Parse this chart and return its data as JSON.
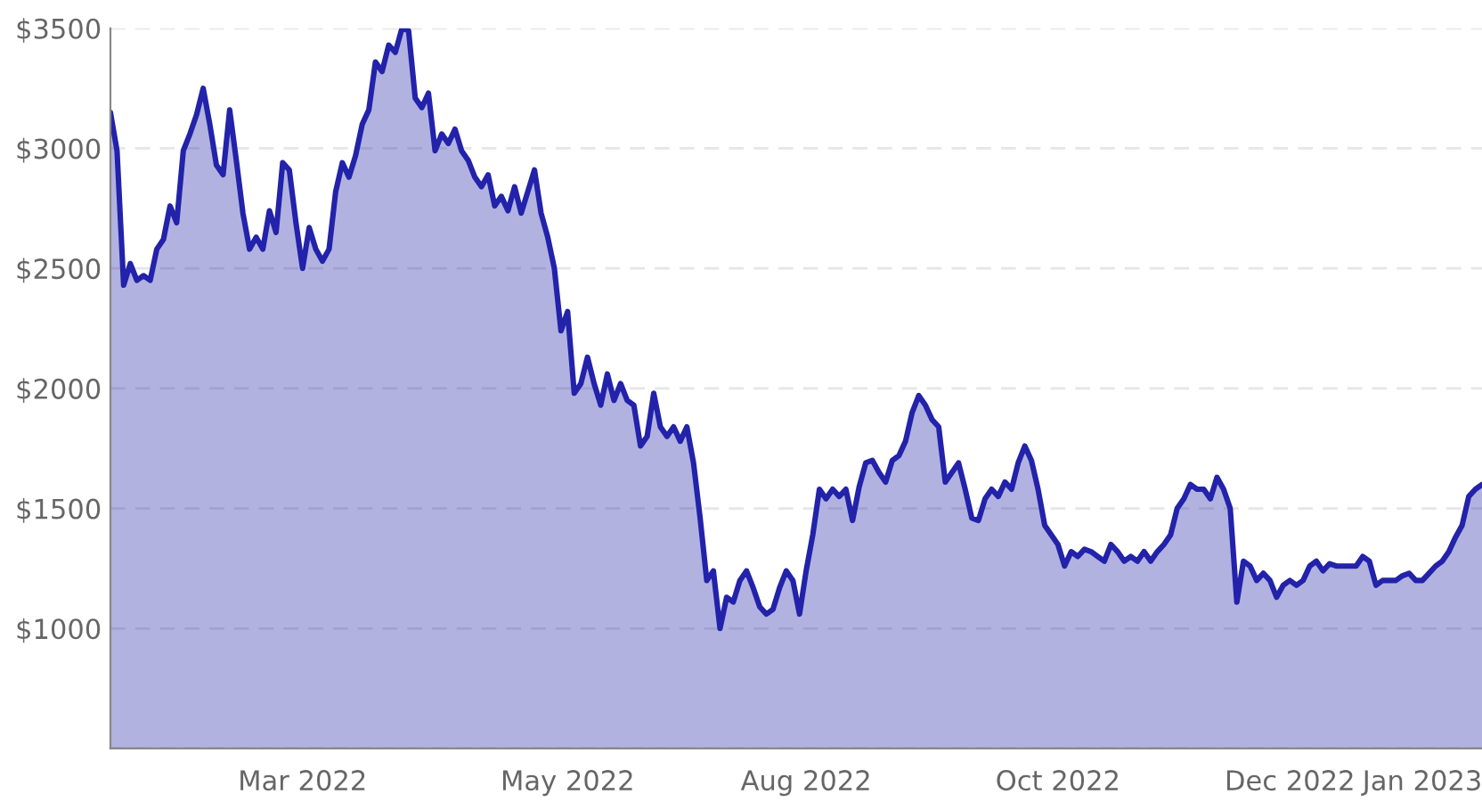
{
  "chart_data": {
    "type": "area",
    "categories": [
      null,
      null,
      null,
      null,
      null,
      null,
      null,
      null,
      null,
      null,
      null,
      null,
      null,
      null,
      null,
      null,
      null,
      null,
      null,
      null,
      null,
      null,
      null,
      null,
      null,
      null,
      null,
      null,
      null,
      "Mar 2022",
      null,
      null,
      null,
      null,
      null,
      null,
      null,
      null,
      null,
      null,
      null,
      null,
      null,
      null,
      null,
      null,
      null,
      null,
      null,
      null,
      null,
      null,
      null,
      null,
      null,
      null,
      null,
      null,
      null,
      null,
      null,
      null,
      null,
      null,
      null,
      null,
      null,
      null,
      null,
      "May 2022",
      null,
      null,
      null,
      null,
      null,
      null,
      null,
      null,
      null,
      null,
      null,
      null,
      null,
      null,
      null,
      null,
      null,
      null,
      null,
      null,
      null,
      null,
      null,
      null,
      null,
      null,
      null,
      null,
      null,
      null,
      null,
      null,
      null,
      null,
      null,
      "Aug 2022",
      null,
      null,
      null,
      null,
      null,
      null,
      null,
      null,
      null,
      null,
      null,
      null,
      null,
      null,
      null,
      null,
      null,
      null,
      null,
      null,
      null,
      null,
      null,
      null,
      null,
      null,
      null,
      null,
      null,
      null,
      null,
      null,
      null,
      null,
      null,
      null,
      null,
      "Oct 2022",
      null,
      null,
      null,
      null,
      null,
      null,
      null,
      null,
      null,
      null,
      null,
      null,
      null,
      null,
      null,
      null,
      null,
      null,
      null,
      null,
      null,
      null,
      null,
      null,
      null,
      null,
      null,
      null,
      null,
      null,
      null,
      null,
      null,
      null,
      "Dec 2022",
      null,
      null,
      null,
      null,
      null,
      null,
      null,
      null,
      null,
      null,
      null,
      null,
      null,
      null,
      null,
      null,
      null,
      null,
      null,
      "Jan 2023",
      null,
      null,
      null,
      null,
      null,
      null,
      null,
      null,
      null
    ],
    "ylim": [
      500,
      3500
    ],
    "yticks": [
      {
        "value": 500,
        "label": null
      },
      {
        "value": 1000,
        "label": "$1000"
      },
      {
        "value": 1500,
        "label": "$1500"
      },
      {
        "value": 2000,
        "label": "$2000"
      },
      {
        "value": 2500,
        "label": "$2500"
      },
      {
        "value": 3000,
        "label": "$3000"
      },
      {
        "value": 3500,
        "label": "$3500"
      }
    ],
    "grid": "y",
    "series": [
      {
        "color": "#2222aa",
        "values": [
          3150,
          2990,
          2430,
          2520,
          2450,
          2470,
          2450,
          2580,
          2620,
          2760,
          2690,
          2990,
          3060,
          3140,
          3250,
          3100,
          2930,
          2890,
          3160,
          2950,
          2730,
          2580,
          2630,
          2580,
          2740,
          2650,
          2940,
          2910,
          2690,
          2500,
          2670,
          2580,
          2530,
          2580,
          2820,
          2940,
          2880,
          2970,
          3100,
          3160,
          3360,
          3320,
          3430,
          3400,
          3500,
          3490,
          3210,
          3170,
          3230,
          2990,
          3060,
          3020,
          3080,
          2990,
          2950,
          2880,
          2840,
          2890,
          2760,
          2800,
          2740,
          2840,
          2730,
          2820,
          2910,
          2730,
          2630,
          2500,
          2240,
          2320,
          1980,
          2020,
          2130,
          2020,
          1930,
          2060,
          1950,
          2020,
          1950,
          1930,
          1760,
          1800,
          1980,
          1840,
          1800,
          1840,
          1780,
          1840,
          1690,
          1460,
          1200,
          1240,
          1000,
          1130,
          1110,
          1200,
          1240,
          1170,
          1090,
          1060,
          1080,
          1170,
          1240,
          1200,
          1060,
          1240,
          1390,
          1580,
          1540,
          1580,
          1550,
          1580,
          1450,
          1590,
          1690,
          1700,
          1650,
          1610,
          1700,
          1720,
          1780,
          1900,
          1970,
          1930,
          1870,
          1840,
          1610,
          1650,
          1690,
          1580,
          1460,
          1450,
          1540,
          1580,
          1550,
          1610,
          1580,
          1690,
          1760,
          1700,
          1580,
          1430,
          1390,
          1350,
          1260,
          1320,
          1300,
          1330,
          1320,
          1300,
          1280,
          1350,
          1320,
          1280,
          1300,
          1280,
          1320,
          1280,
          1320,
          1350,
          1390,
          1500,
          1540,
          1600,
          1580,
          1580,
          1540,
          1630,
          1580,
          1500,
          1110,
          1280,
          1260,
          1200,
          1230,
          1200,
          1130,
          1180,
          1200,
          1180,
          1200,
          1260,
          1280,
          1240,
          1270,
          1260,
          1260,
          1260,
          1260,
          1300,
          1280,
          1180,
          1200,
          1200,
          1200,
          1220,
          1230,
          1200,
          1200,
          1230,
          1260,
          1280,
          1320,
          1380,
          1430,
          1550,
          1580,
          1600
        ]
      }
    ]
  }
}
